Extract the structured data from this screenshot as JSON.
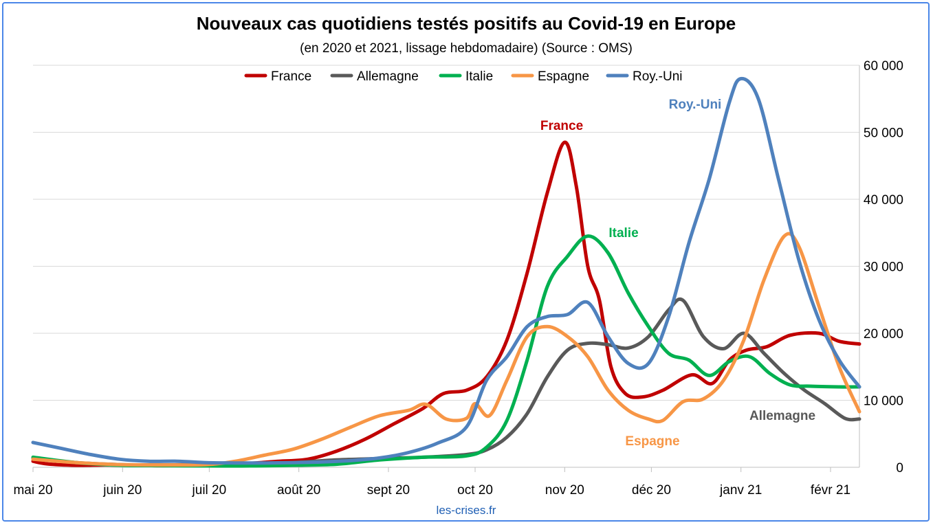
{
  "chart_data": {
    "type": "line",
    "title": "Nouveaux cas quotidiens testés positifs au Covid-19 en Europe",
    "subtitle": "(en 2020 et 2021, lissage hebdomadaire) (Source : OMS)",
    "source_note": "les-crises.fr",
    "x_ticks": [
      "mai 20",
      "juin 20",
      "juil 20",
      "août 20",
      "sept 20",
      "oct 20",
      "nov 20",
      "déc 20",
      "janv 21",
      "févr 21"
    ],
    "x_range": [
      "2020-05-01",
      "2021-02-11"
    ],
    "ylim": [
      0,
      60000
    ],
    "y_ticks": [
      "0",
      "10 000",
      "20 000",
      "30 000",
      "40 000",
      "50 000",
      "60 000"
    ],
    "y_tick_values": [
      0,
      10000,
      20000,
      30000,
      40000,
      50000,
      60000
    ],
    "y_axis_side": "right",
    "grid": true,
    "legend_position": "top",
    "series": [
      {
        "name": "France",
        "color": "#c00000",
        "annotation": "France",
        "points": [
          [
            "2020-05-01",
            900
          ],
          [
            "2020-05-06",
            500
          ],
          [
            "2020-05-16",
            300
          ],
          [
            "2020-05-26",
            350
          ],
          [
            "2020-06-05",
            300
          ],
          [
            "2020-06-15",
            250
          ],
          [
            "2020-06-25",
            300
          ],
          [
            "2020-07-05",
            500
          ],
          [
            "2020-07-15",
            600
          ],
          [
            "2020-07-25",
            900
          ],
          [
            "2020-08-04",
            1200
          ],
          [
            "2020-08-14",
            2400
          ],
          [
            "2020-08-24",
            4200
          ],
          [
            "2020-09-03",
            6500
          ],
          [
            "2020-09-13",
            8800
          ],
          [
            "2020-09-20",
            11000
          ],
          [
            "2020-09-28",
            11500
          ],
          [
            "2020-10-05",
            13500
          ],
          [
            "2020-10-12",
            19000
          ],
          [
            "2020-10-19",
            29000
          ],
          [
            "2020-10-26",
            41000
          ],
          [
            "2020-11-01",
            48500
          ],
          [
            "2020-11-05",
            42000
          ],
          [
            "2020-11-09",
            30000
          ],
          [
            "2020-11-13",
            25000
          ],
          [
            "2020-11-17",
            15000
          ],
          [
            "2020-11-22",
            11000
          ],
          [
            "2020-11-28",
            10500
          ],
          [
            "2020-12-05",
            11500
          ],
          [
            "2020-12-15",
            13800
          ],
          [
            "2020-12-22",
            12500
          ],
          [
            "2020-12-28",
            16000
          ],
          [
            "2021-01-03",
            17500
          ],
          [
            "2021-01-10",
            18000
          ],
          [
            "2021-01-18",
            19700
          ],
          [
            "2021-01-28",
            20000
          ],
          [
            "2021-02-04",
            18800
          ],
          [
            "2021-02-11",
            18400
          ]
        ]
      },
      {
        "name": "Allemagne",
        "color": "#595959",
        "annotation": "Allemagne",
        "points": [
          [
            "2020-05-01",
            1300
          ],
          [
            "2020-05-16",
            700
          ],
          [
            "2020-05-31",
            400
          ],
          [
            "2020-06-15",
            350
          ],
          [
            "2020-06-30",
            400
          ],
          [
            "2020-07-15",
            450
          ],
          [
            "2020-07-30",
            700
          ],
          [
            "2020-08-14",
            1100
          ],
          [
            "2020-08-29",
            1300
          ],
          [
            "2020-09-13",
            1500
          ],
          [
            "2020-09-28",
            1900
          ],
          [
            "2020-10-05",
            2600
          ],
          [
            "2020-10-12",
            4500
          ],
          [
            "2020-10-19",
            8000
          ],
          [
            "2020-10-26",
            13500
          ],
          [
            "2020-11-02",
            17500
          ],
          [
            "2020-11-09",
            18500
          ],
          [
            "2020-11-16",
            18300
          ],
          [
            "2020-11-23",
            17800
          ],
          [
            "2020-11-30",
            19500
          ],
          [
            "2020-12-07",
            23500
          ],
          [
            "2020-12-12",
            24900
          ],
          [
            "2020-12-19",
            19500
          ],
          [
            "2020-12-26",
            17700
          ],
          [
            "2021-01-02",
            20000
          ],
          [
            "2021-01-09",
            17000
          ],
          [
            "2021-01-16",
            14000
          ],
          [
            "2021-01-23",
            11500
          ],
          [
            "2021-01-30",
            9500
          ],
          [
            "2021-02-06",
            7300
          ],
          [
            "2021-02-11",
            7200
          ]
        ]
      },
      {
        "name": "Italie",
        "color": "#00b050",
        "annotation": "Italie",
        "points": [
          [
            "2020-05-01",
            1500
          ],
          [
            "2020-05-16",
            700
          ],
          [
            "2020-05-31",
            300
          ],
          [
            "2020-06-15",
            250
          ],
          [
            "2020-06-30",
            200
          ],
          [
            "2020-07-15",
            200
          ],
          [
            "2020-07-30",
            300
          ],
          [
            "2020-08-14",
            450
          ],
          [
            "2020-08-29",
            1100
          ],
          [
            "2020-09-13",
            1500
          ],
          [
            "2020-09-28",
            1700
          ],
          [
            "2020-10-05",
            3000
          ],
          [
            "2020-10-12",
            7000
          ],
          [
            "2020-10-19",
            16000
          ],
          [
            "2020-10-26",
            27000
          ],
          [
            "2020-11-02",
            31500
          ],
          [
            "2020-11-09",
            34500
          ],
          [
            "2020-11-16",
            32000
          ],
          [
            "2020-11-23",
            26000
          ],
          [
            "2020-11-30",
            21000
          ],
          [
            "2020-12-07",
            17000
          ],
          [
            "2020-12-14",
            16000
          ],
          [
            "2020-12-21",
            13700
          ],
          [
            "2020-12-28",
            15800
          ],
          [
            "2021-01-04",
            16500
          ],
          [
            "2021-01-11",
            14000
          ],
          [
            "2021-01-18",
            12300
          ],
          [
            "2021-01-25",
            12100
          ],
          [
            "2021-02-04",
            12000
          ],
          [
            "2021-02-11",
            12000
          ]
        ]
      },
      {
        "name": "Espagne",
        "color": "#f79646",
        "annotation": "Espagne",
        "points": [
          [
            "2020-05-01",
            1200
          ],
          [
            "2020-05-16",
            700
          ],
          [
            "2020-05-31",
            400
          ],
          [
            "2020-06-15",
            350
          ],
          [
            "2020-06-30",
            400
          ],
          [
            "2020-07-10",
            900
          ],
          [
            "2020-07-20",
            1800
          ],
          [
            "2020-07-30",
            2700
          ],
          [
            "2020-08-09",
            4200
          ],
          [
            "2020-08-19",
            6000
          ],
          [
            "2020-08-29",
            7700
          ],
          [
            "2020-09-08",
            8500
          ],
          [
            "2020-09-14",
            9400
          ],
          [
            "2020-09-21",
            7200
          ],
          [
            "2020-09-28",
            7300
          ],
          [
            "2020-10-01",
            9500
          ],
          [
            "2020-10-06",
            7700
          ],
          [
            "2020-10-12",
            13000
          ],
          [
            "2020-10-19",
            19500
          ],
          [
            "2020-10-26",
            21000
          ],
          [
            "2020-11-02",
            19500
          ],
          [
            "2020-11-09",
            16500
          ],
          [
            "2020-11-16",
            11500
          ],
          [
            "2020-11-23",
            8500
          ],
          [
            "2020-11-30",
            7200
          ],
          [
            "2020-12-05",
            7000
          ],
          [
            "2020-12-12",
            9800
          ],
          [
            "2020-12-19",
            10200
          ],
          [
            "2020-12-26",
            13000
          ],
          [
            "2021-01-02",
            19000
          ],
          [
            "2021-01-09",
            28000
          ],
          [
            "2021-01-16",
            34500
          ],
          [
            "2021-01-21",
            33000
          ],
          [
            "2021-01-28",
            24000
          ],
          [
            "2021-02-04",
            15000
          ],
          [
            "2021-02-11",
            8300
          ]
        ]
      },
      {
        "name": "Roy.-Uni",
        "color": "#4f81bd",
        "annotation": "Roy.-Uni",
        "points": [
          [
            "2020-05-01",
            3700
          ],
          [
            "2020-05-11",
            2800
          ],
          [
            "2020-05-21",
            1900
          ],
          [
            "2020-05-31",
            1200
          ],
          [
            "2020-06-10",
            900
          ],
          [
            "2020-06-20",
            900
          ],
          [
            "2020-06-30",
            700
          ],
          [
            "2020-07-10",
            650
          ],
          [
            "2020-07-20",
            650
          ],
          [
            "2020-07-30",
            700
          ],
          [
            "2020-08-09",
            800
          ],
          [
            "2020-08-19",
            1000
          ],
          [
            "2020-08-29",
            1400
          ],
          [
            "2020-09-08",
            2200
          ],
          [
            "2020-09-18",
            3600
          ],
          [
            "2020-09-28",
            6000
          ],
          [
            "2020-10-05",
            13000
          ],
          [
            "2020-10-12",
            16500
          ],
          [
            "2020-10-19",
            21000
          ],
          [
            "2020-10-26",
            22500
          ],
          [
            "2020-11-02",
            22800
          ],
          [
            "2020-11-09",
            24600
          ],
          [
            "2020-11-16",
            19500
          ],
          [
            "2020-11-23",
            15500
          ],
          [
            "2020-11-30",
            15500
          ],
          [
            "2020-12-07",
            22500
          ],
          [
            "2020-12-14",
            33500
          ],
          [
            "2020-12-21",
            43000
          ],
          [
            "2020-12-28",
            54500
          ],
          [
            "2021-01-01",
            58000
          ],
          [
            "2021-01-07",
            55000
          ],
          [
            "2021-01-14",
            43000
          ],
          [
            "2021-01-21",
            31000
          ],
          [
            "2021-01-28",
            22000
          ],
          [
            "2021-02-04",
            16000
          ],
          [
            "2021-02-11",
            12000
          ]
        ]
      }
    ]
  }
}
